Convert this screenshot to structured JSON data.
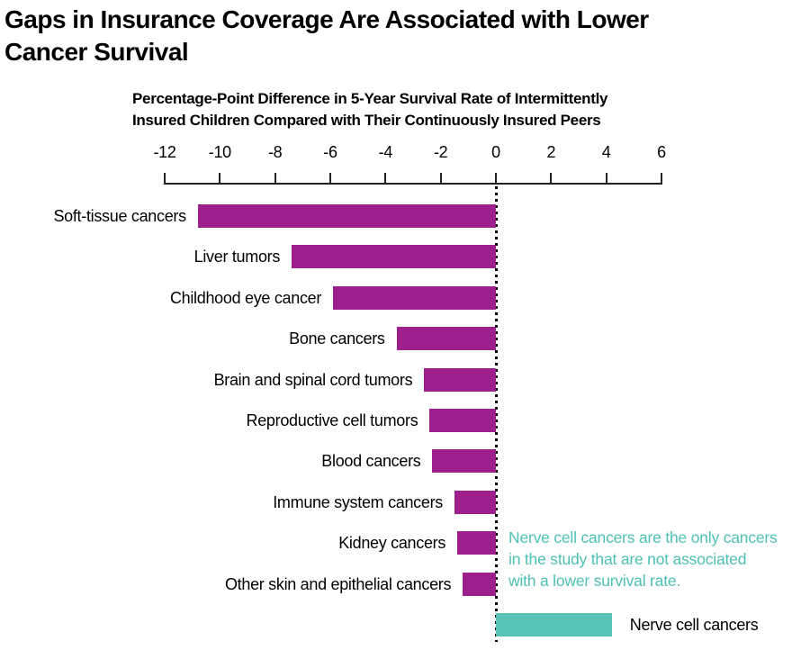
{
  "header": {
    "title": "Gaps in Insurance Coverage Are Associated with Lower\nCancer Survival"
  },
  "chart_data": {
    "type": "bar",
    "orientation": "horizontal",
    "title": "Gaps in Insurance Coverage Are Associated with Lower Cancer Survival",
    "subtitle": "Percentage-Point Difference in 5-Year Survival Rate of Intermittently\nInsured Children Compared with Their Continuously Insured Peers",
    "xlabel": "Percentage-point difference in 5-year survival rate",
    "xlim": [
      -12,
      6
    ],
    "ticks": [
      -12,
      -10,
      -8,
      -6,
      -4,
      -2,
      0,
      2,
      4,
      6
    ],
    "grid": false,
    "zero_line_style": "dotted",
    "legend": "none",
    "categories": [
      "Soft-tissue cancers",
      "Liver tumors",
      "Childhood eye cancer",
      "Bone cancers",
      "Brain and spinal cord tumors",
      "Reproductive cell tumors",
      "Blood cancers",
      "Immune system cancers",
      "Kidney cancers",
      "Other skin and epithelial cancers",
      "Nerve cell cancers"
    ],
    "values": [
      -10.8,
      -7.4,
      -5.9,
      -3.6,
      -2.6,
      -2.4,
      -2.3,
      -1.5,
      -1.4,
      -1.2,
      4.2
    ],
    "bar_color": "#9C1F8B",
    "highlight_color": "#57C3B7",
    "highlight_category": "Nerve cell cancers",
    "annotation": {
      "text": "Nerve cell cancers are the only cancers\nin the study that are not associated\nwith a lower survival rate.",
      "color": "#4EC0B4"
    }
  }
}
